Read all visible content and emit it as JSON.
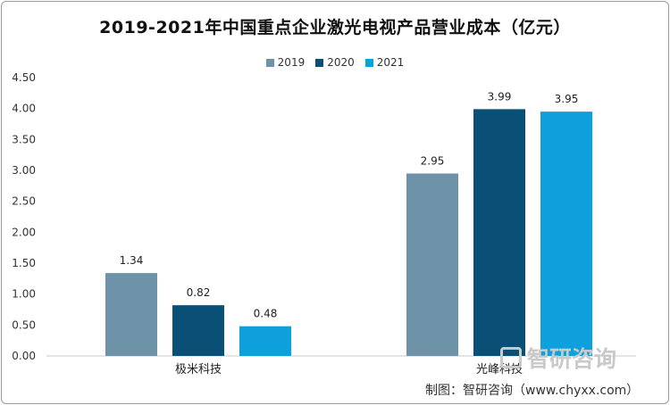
{
  "title": "2019-2021年中国重点企业激光电视产品营业成本（亿元）",
  "source": "制图：智研咨询（www.chyxx.com）",
  "watermark": "智研咨询",
  "colors": {
    "2019": "#6e93a8",
    "2020": "#0a4f76",
    "2021": "#0ea0dc"
  },
  "chart_data": {
    "type": "bar",
    "title": "2019-2021年中国重点企业激光电视产品营业成本（亿元）",
    "categories": [
      "极米科技",
      "光峰科技"
    ],
    "series": [
      {
        "name": "2019",
        "values": [
          1.34,
          2.95
        ]
      },
      {
        "name": "2020",
        "values": [
          0.82,
          3.99
        ]
      },
      {
        "name": "2021",
        "values": [
          0.48,
          3.95
        ]
      }
    ],
    "ylim": [
      0,
      4.5
    ],
    "yticks": [
      "0.00",
      "0.50",
      "1.00",
      "1.50",
      "2.00",
      "2.50",
      "3.00",
      "3.50",
      "4.00",
      "4.50"
    ],
    "legend": "top-center",
    "grid": false
  }
}
